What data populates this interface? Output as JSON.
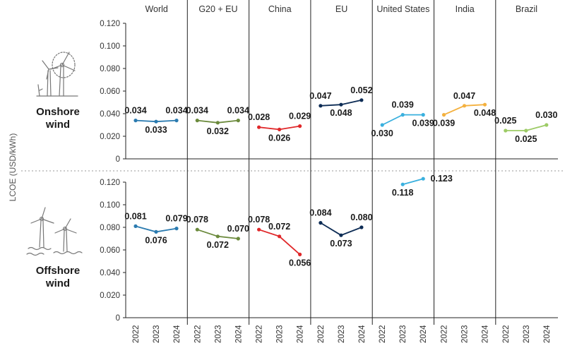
{
  "chart_data": {
    "type": "line",
    "ylabel": "LCOE (USD/kWh)",
    "ylim": [
      0,
      0.12
    ],
    "yticks": [
      "0",
      "0.020",
      "0.040",
      "0.060",
      "0.080",
      "0.100",
      "0.120"
    ],
    "x": [
      "2022",
      "2023",
      "2024"
    ],
    "regions": [
      {
        "name": "World",
        "color": "#2b7bb0"
      },
      {
        "name": "G20 + EU",
        "color": "#6b8a3c"
      },
      {
        "name": "China",
        "color": "#e0282a"
      },
      {
        "name": "EU",
        "color": "#0d2c55"
      },
      {
        "name": "United States",
        "color": "#3ab0de"
      },
      {
        "name": "India",
        "color": "#f4b13f"
      },
      {
        "name": "Brazil",
        "color": "#9dcb66"
      }
    ],
    "panels": [
      {
        "name": "Onshore wind",
        "label_line1": "Onshore",
        "label_line2": "wind",
        "series": [
          {
            "region": "World",
            "values": [
              0.034,
              0.033,
              0.034
            ],
            "labels": [
              "0.034",
              "0.033",
              "0.034"
            ]
          },
          {
            "region": "G20 + EU",
            "values": [
              0.034,
              0.032,
              0.034
            ],
            "labels": [
              "0.034",
              "0.032",
              "0.034"
            ]
          },
          {
            "region": "China",
            "values": [
              0.028,
              0.026,
              0.029
            ],
            "labels": [
              "0.028",
              "0.026",
              "0.029"
            ]
          },
          {
            "region": "EU",
            "values": [
              0.047,
              0.048,
              0.052
            ],
            "labels": [
              "0.047",
              "0.048",
              "0.052"
            ]
          },
          {
            "region": "United States",
            "values": [
              0.03,
              0.039,
              0.039
            ],
            "labels": [
              "0.030",
              "0.039",
              "0.039"
            ]
          },
          {
            "region": "India",
            "values": [
              0.039,
              0.047,
              0.048
            ],
            "labels": [
              "0.039",
              "0.047",
              "0.048"
            ]
          },
          {
            "region": "Brazil",
            "values": [
              0.025,
              0.025,
              0.03
            ],
            "labels": [
              "0.025",
              "0.025",
              "0.030"
            ]
          }
        ]
      },
      {
        "name": "Offshore wind",
        "label_line1": "Offshore",
        "label_line2": "wind",
        "series": [
          {
            "region": "World",
            "values": [
              0.081,
              0.076,
              0.079
            ],
            "labels": [
              "0.081",
              "0.076",
              "0.079"
            ]
          },
          {
            "region": "G20 + EU",
            "values": [
              0.078,
              0.072,
              0.07
            ],
            "labels": [
              "0.078",
              "0.072",
              "0.070"
            ]
          },
          {
            "region": "China",
            "values": [
              0.078,
              0.072,
              0.056
            ],
            "labels": [
              "0.078",
              "0.072",
              "0.056"
            ]
          },
          {
            "region": "EU",
            "values": [
              0.084,
              0.073,
              0.08
            ],
            "labels": [
              "0.084",
              "0.073",
              "0.080"
            ]
          },
          {
            "region": "United States",
            "values": [
              null,
              0.118,
              0.123
            ],
            "labels": [
              null,
              "0.118",
              "0.123"
            ]
          }
        ]
      }
    ]
  }
}
